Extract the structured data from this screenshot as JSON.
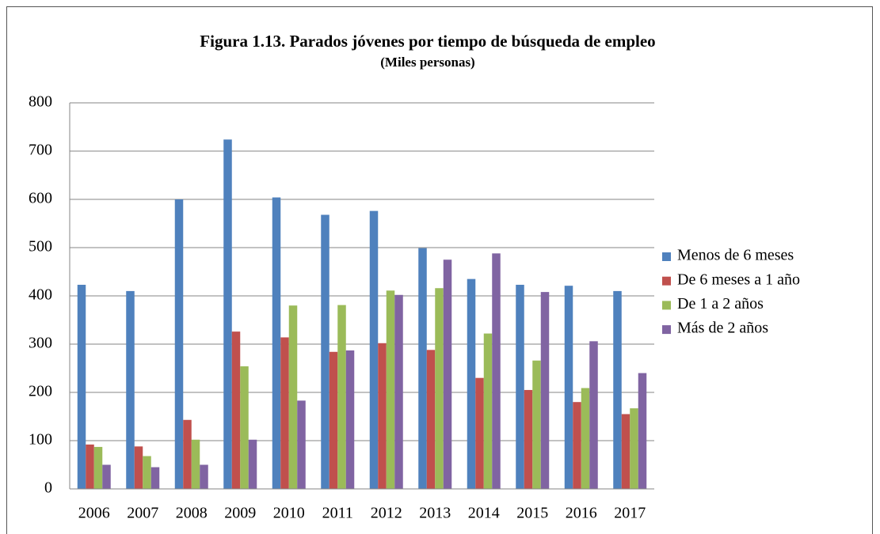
{
  "chart_data": {
    "type": "bar",
    "title": "Figura 1.13. Parados jóvenes por tiempo de búsqueda de empleo",
    "subtitle": "(Miles personas)",
    "categories": [
      "2006",
      "2007",
      "2008",
      "2009",
      "2010",
      "2011",
      "2012",
      "2013",
      "2014",
      "2015",
      "2016",
      "2017"
    ],
    "series": [
      {
        "name": "Menos de 6 meses",
        "color": "#4f81bd",
        "values": [
          423,
          410,
          600,
          724,
          604,
          568,
          576,
          499,
          435,
          423,
          421,
          410
        ]
      },
      {
        "name": "De 6 meses a 1 año",
        "color": "#c0504d",
        "values": [
          92,
          88,
          143,
          326,
          314,
          284,
          302,
          288,
          230,
          205,
          180,
          155
        ]
      },
      {
        "name": "De 1 a 2 años",
        "color": "#9bbb59",
        "values": [
          87,
          68,
          102,
          254,
          380,
          381,
          411,
          416,
          322,
          266,
          209,
          167
        ]
      },
      {
        "name": "Más de 2 años",
        "color": "#8064a2",
        "values": [
          50,
          45,
          50,
          102,
          183,
          287,
          402,
          475,
          488,
          408,
          306,
          240
        ]
      }
    ],
    "ylim": [
      0,
      800
    ],
    "yticks": [
      0,
      100,
      200,
      300,
      400,
      500,
      600,
      700,
      800
    ],
    "grid": true,
    "legend": "right"
  }
}
